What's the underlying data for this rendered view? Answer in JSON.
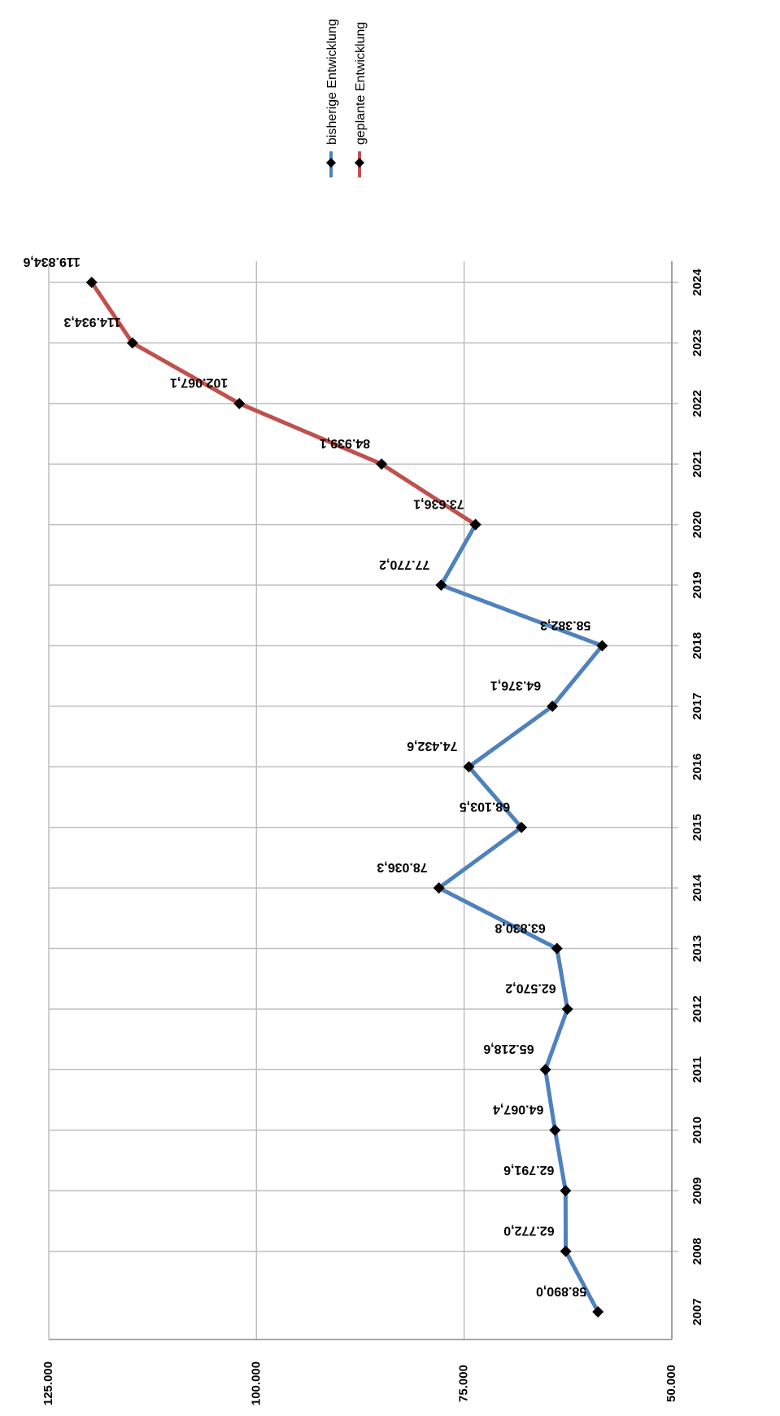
{
  "chart_data": {
    "type": "line",
    "orientation": "rotated-90-clockwise",
    "categories": [
      "2007",
      "2008",
      "2009",
      "2010",
      "2011",
      "2012",
      "2013",
      "2014",
      "2015",
      "2016",
      "2017",
      "2018",
      "2019",
      "2020",
      "2021",
      "2022",
      "2023",
      "2024"
    ],
    "ylim": [
      50000,
      125000
    ],
    "yticks": [
      50000,
      75000,
      100000,
      125000
    ],
    "ytick_labels": [
      "50.000",
      "75.000",
      "100.000",
      "125.000"
    ],
    "grid": true,
    "legend_position": "top",
    "series": [
      {
        "name": "bisherige Entwicklung",
        "color": "#4f81bd",
        "marker": "diamond",
        "values": [
          58890.0,
          62772.0,
          62791.6,
          64067.4,
          65218.6,
          62570.2,
          63830.8,
          78036.3,
          68103.5,
          74432.6,
          64376.1,
          58382.3,
          77770.2,
          73636.1,
          null,
          null,
          null,
          null
        ],
        "labels": [
          "58.890,0",
          "62.772,0",
          "62.791,6",
          "64.067,4",
          "65.218,6",
          "62.570,2",
          "63.830,8",
          "78.036,3",
          "68.103,5",
          "74.432,6",
          "64.376,1",
          "58.382,3",
          "77.770,2",
          "",
          "",
          "",
          "",
          ""
        ]
      },
      {
        "name": "geplante Entwicklung",
        "color": "#c0504d",
        "marker": "diamond",
        "values": [
          null,
          null,
          null,
          null,
          null,
          null,
          null,
          null,
          null,
          null,
          null,
          null,
          null,
          73636.1,
          84939.1,
          102067.1,
          114934.3,
          119834.6
        ],
        "labels": [
          "",
          "",
          "",
          "",
          "",
          "",
          "",
          "",
          "",
          "",
          "",
          "",
          "",
          "73.636,1",
          "84.939,1",
          "102.067,1",
          "114.934,3",
          "119.834,6"
        ]
      }
    ]
  }
}
